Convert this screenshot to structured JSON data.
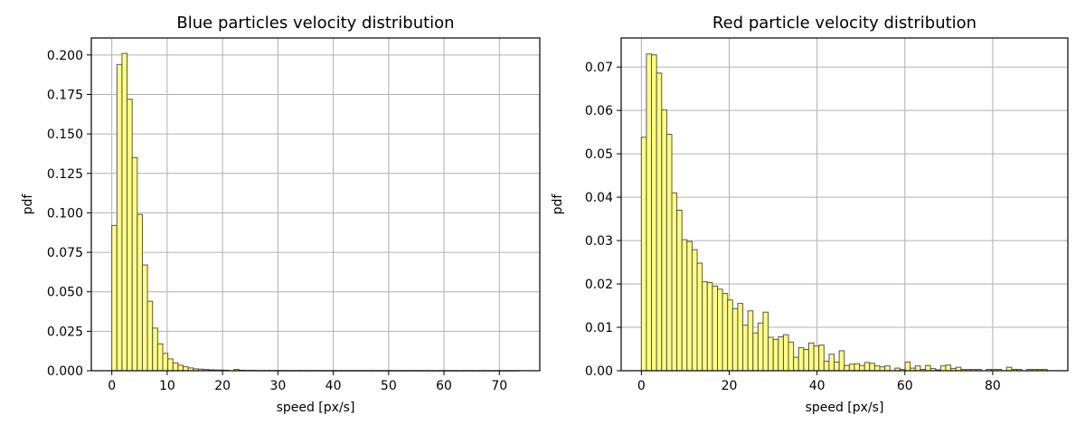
{
  "chart_data": [
    {
      "type": "bar",
      "title": "Blue particles velocity distribution",
      "xlabel": "speed [px/s]",
      "ylabel": "pdf",
      "xlim": [
        -3.7,
        77.3
      ],
      "ylim": [
        0,
        0.2108
      ],
      "xticks": [
        0,
        10,
        20,
        30,
        40,
        50,
        60,
        70
      ],
      "xtick_labels": [
        "0",
        "10",
        "20",
        "30",
        "40",
        "50",
        "60",
        "70"
      ],
      "yticks": [
        0,
        0.025,
        0.05,
        0.075,
        0.1,
        0.125,
        0.15,
        0.175,
        0.2
      ],
      "ytick_labels": [
        "0.000",
        "0.025",
        "0.050",
        "0.075",
        "0.100",
        "0.125",
        "0.150",
        "0.175",
        "0.200"
      ],
      "grid": true,
      "bar_color": "#ffff80",
      "edge_color": "#555555",
      "bin_start": 0,
      "bin_width": 0.92,
      "values": [
        0.092,
        0.194,
        0.201,
        0.172,
        0.135,
        0.099,
        0.067,
        0.044,
        0.027,
        0.017,
        0.011,
        0.0075,
        0.005,
        0.0035,
        0.0025,
        0.0018,
        0.0012,
        0.001,
        0.0008,
        0.0006,
        0.0005,
        0.0004,
        0.0003,
        0,
        0.0008,
        0.0003,
        0.0002,
        0.0002,
        0.0001,
        0.0001,
        0.0001,
        0.0001,
        0.0001,
        8e-05,
        8e-05,
        6e-05,
        6e-05,
        6e-05,
        5e-05,
        5e-05,
        5e-05,
        4e-05,
        4e-05,
        4e-05,
        4e-05,
        3e-05,
        3e-05,
        3e-05,
        3e-05,
        3e-05,
        3e-05,
        2e-05,
        2e-05,
        2e-05,
        2e-05,
        2e-05,
        2e-05,
        2e-05,
        2e-05,
        2e-05,
        2e-05,
        2e-05,
        1e-05,
        1e-05,
        1e-05,
        1e-05,
        1e-05,
        1e-05,
        1e-05,
        1e-05,
        1e-05,
        1e-05,
        1e-05,
        1e-05,
        1e-05,
        1e-05,
        1e-05,
        1e-05,
        1e-05,
        1e-05
      ]
    },
    {
      "type": "bar",
      "title": "Red particle velocity distribution",
      "xlabel": "speed [px/s]",
      "ylabel": "pdf",
      "xlim": [
        -4.6,
        97.1
      ],
      "ylim": [
        0,
        0.0767
      ],
      "xticks": [
        0,
        20,
        40,
        60,
        80
      ],
      "xtick_labels": [
        "0",
        "20",
        "40",
        "60",
        "80"
      ],
      "yticks": [
        0,
        0.01,
        0.02,
        0.03,
        0.04,
        0.05,
        0.06,
        0.07
      ],
      "ytick_labels": [
        "0.00",
        "0.01",
        "0.02",
        "0.03",
        "0.04",
        "0.05",
        "0.06",
        "0.07"
      ],
      "grid": true,
      "bar_color": "#ffff80",
      "edge_color": "#555555",
      "bin_start": 0,
      "bin_width": 1.155,
      "values": [
        0.0538,
        0.073,
        0.0728,
        0.0686,
        0.0601,
        0.0545,
        0.041,
        0.037,
        0.0302,
        0.0298,
        0.0279,
        0.0248,
        0.0205,
        0.0203,
        0.0195,
        0.0188,
        0.0178,
        0.0163,
        0.0143,
        0.0155,
        0.0105,
        0.0138,
        0.0087,
        0.011,
        0.0135,
        0.0077,
        0.0072,
        0.0078,
        0.0083,
        0.0066,
        0.0031,
        0.0053,
        0.0049,
        0.0064,
        0.0057,
        0.0059,
        0.0022,
        0.0038,
        0.002,
        0.0046,
        0.0012,
        0.0015,
        0.0016,
        0.0012,
        0.0019,
        0.0017,
        0.0011,
        0.0009,
        0.0011,
        0,
        0.0006,
        0.0003,
        0.002,
        0.0006,
        0.0011,
        0.0003,
        0.0012,
        0.0005,
        0.0002,
        0.0011,
        0.0013,
        0.0005,
        0.0008,
        0.0003,
        0.0003,
        0.0003,
        0.0003,
        0,
        0.0003,
        0.0003,
        0.0003,
        0,
        0.0008,
        0.0003,
        0.0003,
        0,
        0.0003,
        0.0003,
        0.0003,
        0.0003
      ]
    }
  ]
}
